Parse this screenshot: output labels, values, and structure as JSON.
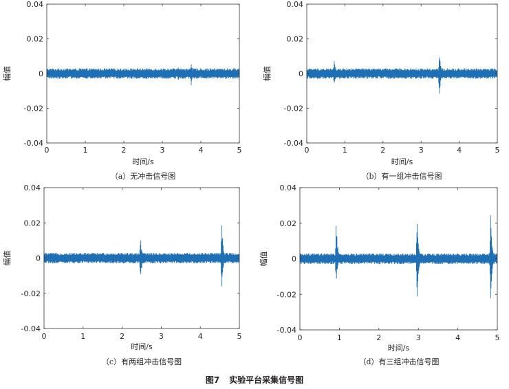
{
  "figure": {
    "number": "图7",
    "title": "实验平台采集信号图"
  },
  "colors": {
    "signal": "#1f6fb4",
    "axis": "#333333"
  },
  "chart_data": [
    {
      "type": "line",
      "caption": "（a）无冲击信号图",
      "xlabel": "时间/s",
      "ylabel": "幅值",
      "xlim": [
        0,
        5
      ],
      "ylim": [
        -0.04,
        0.04
      ],
      "xticks": [
        "0",
        "1",
        "2",
        "3",
        "4",
        "5"
      ],
      "yticks": [
        "-0.04",
        "-0.02",
        "0",
        "0.02",
        "0.04"
      ],
      "noise_amplitude": 0.003,
      "impacts": [
        {
          "t": 3.42,
          "max": 0.005,
          "min": -0.005
        },
        {
          "t": 3.75,
          "max": 0.008,
          "min": -0.007
        }
      ]
    },
    {
      "type": "line",
      "caption": "（b）有一组冲击信号图",
      "xlabel": "时间/s",
      "ylabel": "幅值",
      "xlim": [
        0,
        5
      ],
      "ylim": [
        -0.04,
        0.04
      ],
      "xticks": [
        "0",
        "1",
        "2",
        "3",
        "4",
        "5"
      ],
      "yticks": [
        "-0.04",
        "-0.02",
        "0",
        "0.02",
        "0.04"
      ],
      "noise_amplitude": 0.003,
      "impacts": [
        {
          "t": 0.72,
          "max": 0.008,
          "min": -0.007
        },
        {
          "t": 3.48,
          "max": 0.013,
          "min": -0.016
        }
      ]
    },
    {
      "type": "line",
      "caption": "（c）有两组冲击信号图",
      "xlabel": "时间/s",
      "ylabel": "幅值",
      "xlim": [
        0,
        5
      ],
      "ylim": [
        -0.04,
        0.04
      ],
      "xticks": [
        "0",
        "1",
        "2",
        "3",
        "4",
        "5"
      ],
      "yticks": [
        "-0.04",
        "-0.02",
        "0",
        "0.02",
        "0.04"
      ],
      "noise_amplitude": 0.003,
      "impacts": [
        {
          "t": 2.47,
          "max": 0.013,
          "min": -0.016
        },
        {
          "t": 4.55,
          "max": 0.022,
          "min": -0.018
        }
      ]
    },
    {
      "type": "line",
      "caption": "（d）有三组冲击信号图",
      "xlabel": "时间/s",
      "ylabel": "幅值",
      "xlim": [
        0,
        5
      ],
      "ylim": [
        -0.04,
        0.04
      ],
      "xticks": [
        "0",
        "1",
        "2",
        "3",
        "4",
        "5"
      ],
      "yticks": [
        "-0.04",
        "-0.02",
        "0",
        "0.02",
        "0.04"
      ],
      "noise_amplitude": 0.003,
      "impacts": [
        {
          "t": 0.92,
          "max": 0.025,
          "min": -0.017
        },
        {
          "t": 2.97,
          "max": 0.025,
          "min": -0.031
        },
        {
          "t": 4.83,
          "max": 0.027,
          "min": -0.026
        }
      ]
    }
  ]
}
